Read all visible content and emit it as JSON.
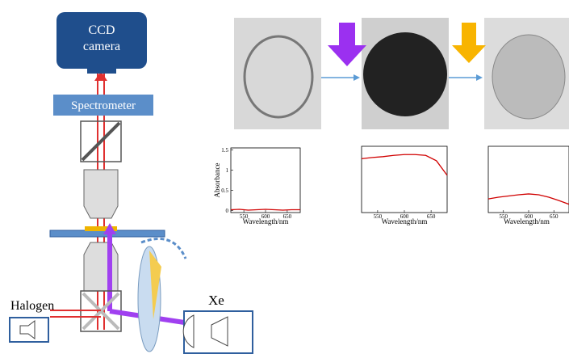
{
  "diagram": {
    "camera": "CCD camera",
    "spectrometer": "Spectrometer",
    "halogen": "Halogen",
    "xe": "Xe"
  },
  "chart_data": [
    {
      "type": "line",
      "xlabel": "Wavelength/nm",
      "ylabel": "Absorbance",
      "x": [
        520,
        540,
        560,
        580,
        600,
        620,
        640,
        660,
        680
      ],
      "xlim": [
        520,
        680
      ],
      "ylim": [
        -0.05,
        1.55
      ],
      "xticks": [
        550,
        600,
        650
      ],
      "yticks": [
        0,
        0.5,
        1,
        1.5
      ],
      "series": [
        {
          "color": "#d00000",
          "values": [
            0.02,
            0.03,
            0.01,
            0.02,
            0.03,
            0.02,
            0.01,
            0.02,
            0.02
          ]
        }
      ]
    },
    {
      "type": "line",
      "xlabel": "Wavelength/nm",
      "x": [
        520,
        540,
        560,
        580,
        600,
        620,
        640,
        660,
        680
      ],
      "xlim": [
        520,
        680
      ],
      "ylim": [
        -0.05,
        1.55
      ],
      "xticks": [
        550,
        600,
        650
      ],
      "series": [
        {
          "color": "#d00000",
          "values": [
            1.25,
            1.28,
            1.3,
            1.33,
            1.35,
            1.35,
            1.33,
            1.2,
            0.85
          ]
        }
      ]
    },
    {
      "type": "line",
      "xlabel": "Wavelength/nm",
      "x": [
        520,
        540,
        560,
        580,
        600,
        620,
        640,
        660,
        680
      ],
      "xlim": [
        520,
        680
      ],
      "ylim": [
        -0.05,
        1.55
      ],
      "xticks": [
        550,
        600,
        650
      ],
      "series": [
        {
          "color": "#d00000",
          "values": [
            0.28,
            0.32,
            0.35,
            0.38,
            0.4,
            0.38,
            0.32,
            0.24,
            0.15
          ]
        }
      ]
    }
  ]
}
